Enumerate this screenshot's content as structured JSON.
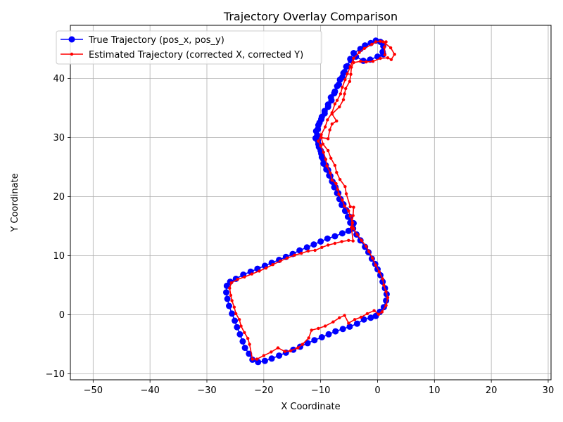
{
  "chart_data": {
    "type": "line",
    "title": "Trajectory Overlay Comparison",
    "xlabel": "X Coordinate",
    "ylabel": "Y Coordinate",
    "xlim": [
      -54,
      30.5
    ],
    "ylim": [
      -11,
      49
    ],
    "xticks": [
      -50,
      -40,
      -30,
      -20,
      -10,
      0,
      10,
      20,
      30
    ],
    "yticks": [
      -10,
      0,
      10,
      20,
      30,
      40
    ],
    "grid": true,
    "legend_position": "top-left",
    "colors": {
      "true": "#0000ff",
      "estimated": "#ff0000",
      "grid": "#b0b0b0"
    },
    "series": [
      {
        "name": "True Trajectory (pos_x, pos_y)",
        "color": "#0000ff",
        "marker": "circle-large",
        "points": [
          [
            0.9,
            44.5
          ],
          [
            1.0,
            45.5
          ],
          [
            0.5,
            46.2
          ],
          [
            -0.3,
            46.4
          ],
          [
            -1.2,
            46.0
          ],
          [
            -2.2,
            45.6
          ],
          [
            -3.0,
            45.0
          ],
          [
            -4.2,
            44.3
          ],
          [
            -4.8,
            43.3
          ],
          [
            -5.3,
            42.1
          ],
          [
            -5.8,
            41.1
          ],
          [
            -6.2,
            40.2
          ],
          [
            -6.8,
            39.0
          ],
          [
            -7.5,
            37.8
          ],
          [
            -8.2,
            36.8
          ],
          [
            -8.7,
            35.6
          ],
          [
            -9.3,
            34.5
          ],
          [
            -9.8,
            33.5
          ],
          [
            -10.2,
            32.5
          ],
          [
            -10.5,
            31.4
          ],
          [
            -10.6,
            30.4
          ],
          [
            -10.5,
            29.5
          ],
          [
            -10.3,
            28.4
          ],
          [
            -9.9,
            27.3
          ],
          [
            -9.5,
            26.3
          ],
          [
            -9.1,
            25.3
          ],
          [
            -8.7,
            24.5
          ],
          [
            -8.3,
            23.5
          ],
          [
            -7.9,
            22.5
          ],
          [
            -7.4,
            21.6
          ],
          [
            -6.9,
            20.6
          ],
          [
            -6.5,
            19.6
          ],
          [
            -6.0,
            18.7
          ],
          [
            -5.5,
            17.7
          ],
          [
            -5.2,
            16.6
          ],
          [
            -4.8,
            15.6
          ],
          [
            -4.3,
            14.6
          ],
          [
            -3.7,
            13.6
          ],
          [
            -3.0,
            12.6
          ],
          [
            -2.2,
            11.5
          ],
          [
            -1.6,
            10.6
          ],
          [
            -1.0,
            9.5
          ],
          [
            -0.4,
            8.6
          ],
          [
            0.0,
            7.7
          ],
          [
            0.5,
            6.7
          ],
          [
            0.9,
            5.6
          ],
          [
            1.3,
            4.5
          ],
          [
            1.6,
            3.5
          ],
          [
            1.5,
            2.4
          ],
          [
            1.1,
            1.3
          ],
          [
            0.4,
            0.5
          ],
          [
            -0.3,
            -0.2
          ],
          [
            -1.2,
            -0.5
          ],
          [
            -2.4,
            -0.8
          ],
          [
            -3.6,
            -1.5
          ],
          [
            -4.9,
            -2.0
          ],
          [
            -6.1,
            -2.4
          ],
          [
            -7.4,
            -2.8
          ],
          [
            -8.6,
            -3.3
          ],
          [
            -9.8,
            -3.8
          ],
          [
            -11.1,
            -4.3
          ],
          [
            -12.3,
            -4.8
          ],
          [
            -13.6,
            -5.4
          ],
          [
            -14.8,
            -5.9
          ],
          [
            -16.1,
            -6.4
          ],
          [
            -17.3,
            -6.9
          ],
          [
            -18.6,
            -7.4
          ],
          [
            -19.8,
            -7.8
          ],
          [
            -21.0,
            -8.0
          ],
          [
            -22.0,
            -7.6
          ],
          [
            -22.6,
            -6.6
          ],
          [
            -23.3,
            -5.6
          ],
          [
            -23.7,
            -4.5
          ],
          [
            -24.2,
            -3.3
          ],
          [
            -24.7,
            -2.1
          ],
          [
            -25.1,
            -1.0
          ],
          [
            -25.6,
            0.2
          ],
          [
            -26.1,
            1.5
          ],
          [
            -26.4,
            2.7
          ],
          [
            -26.6,
            3.8
          ],
          [
            -26.5,
            4.9
          ],
          [
            -25.9,
            5.6
          ],
          [
            -24.9,
            6.1
          ],
          [
            -23.6,
            6.8
          ],
          [
            -22.3,
            7.3
          ],
          [
            -21.1,
            7.8
          ],
          [
            -19.8,
            8.3
          ],
          [
            -18.6,
            8.8
          ],
          [
            -17.3,
            9.3
          ],
          [
            -16.1,
            9.8
          ],
          [
            -14.9,
            10.3
          ],
          [
            -13.7,
            10.9
          ],
          [
            -12.4,
            11.4
          ],
          [
            -11.2,
            11.9
          ],
          [
            -10.0,
            12.4
          ],
          [
            -8.8,
            12.9
          ],
          [
            -7.5,
            13.3
          ],
          [
            -6.2,
            13.8
          ],
          [
            -5.1,
            14.2
          ],
          [
            -4.2,
            15.5
          ],
          [
            -4.9,
            16.6
          ],
          [
            -5.7,
            17.6
          ],
          [
            -6.3,
            18.6
          ],
          [
            -6.7,
            19.6
          ],
          [
            -7.1,
            20.6
          ],
          [
            -7.6,
            21.6
          ],
          [
            -8.0,
            22.6
          ],
          [
            -8.5,
            23.6
          ],
          [
            -9.0,
            24.6
          ],
          [
            -9.5,
            25.6
          ],
          [
            -9.8,
            26.7
          ],
          [
            -10.0,
            27.8
          ],
          [
            -10.4,
            28.9
          ],
          [
            -10.9,
            29.9
          ],
          [
            -10.8,
            31.1
          ],
          [
            -10.4,
            32.1
          ],
          [
            -9.9,
            33.1
          ],
          [
            -9.3,
            34.1
          ],
          [
            -8.7,
            35.2
          ],
          [
            -8.1,
            36.3
          ],
          [
            -7.6,
            37.5
          ],
          [
            -7.1,
            38.7
          ],
          [
            -6.6,
            39.8
          ],
          [
            -6.0,
            40.9
          ],
          [
            -5.5,
            42.0
          ],
          [
            -4.7,
            43.1
          ],
          [
            -3.8,
            43.7
          ],
          [
            -2.5,
            43.0
          ],
          [
            -1.3,
            43.2
          ],
          [
            0.0,
            43.7
          ],
          [
            1.0,
            44.1
          ]
        ]
      },
      {
        "name": "Estimated Trajectory (corrected X, corrected Y)",
        "color": "#ff0000",
        "marker": "circle-small",
        "points": [
          [
            1.3,
            44.0
          ],
          [
            1.2,
            45.3
          ],
          [
            1.5,
            46.2
          ],
          [
            0.5,
            46.3
          ],
          [
            -0.3,
            46.2
          ],
          [
            -1.0,
            45.8
          ],
          [
            -2.3,
            45.1
          ],
          [
            -3.2,
            44.4
          ],
          [
            -4.2,
            43.4
          ],
          [
            -4.8,
            42.0
          ],
          [
            -5.3,
            40.8
          ],
          [
            -5.7,
            39.8
          ],
          [
            -6.2,
            38.5
          ],
          [
            -6.5,
            37.4
          ],
          [
            -7.1,
            36.3
          ],
          [
            -7.5,
            35.7
          ],
          [
            -8.0,
            34.2
          ],
          [
            -8.8,
            33.0
          ],
          [
            -9.2,
            31.8
          ],
          [
            -9.9,
            30.5
          ],
          [
            -10.4,
            29.4
          ],
          [
            -10.0,
            28.6
          ],
          [
            -9.5,
            27.5
          ],
          [
            -9.1,
            26.3
          ],
          [
            -8.9,
            25.2
          ],
          [
            -8.3,
            24.0
          ],
          [
            -8.0,
            22.8
          ],
          [
            -7.3,
            22.2
          ],
          [
            -7.0,
            21.2
          ],
          [
            -6.8,
            20.4
          ],
          [
            -6.2,
            19.4
          ],
          [
            -5.8,
            18.4
          ],
          [
            -5.1,
            17.6
          ],
          [
            -4.8,
            16.7
          ],
          [
            -4.4,
            15.6
          ],
          [
            -4.2,
            14.6
          ],
          [
            -3.6,
            13.6
          ],
          [
            -2.8,
            12.6
          ],
          [
            -2.0,
            11.6
          ],
          [
            -1.5,
            10.7
          ],
          [
            -0.9,
            9.6
          ],
          [
            -0.3,
            8.4
          ],
          [
            0.3,
            7.3
          ],
          [
            0.9,
            6.1
          ],
          [
            1.1,
            5.0
          ],
          [
            1.5,
            3.9
          ],
          [
            1.8,
            2.9
          ],
          [
            1.5,
            1.6
          ],
          [
            0.8,
            0.5
          ],
          [
            0.2,
            0.1
          ],
          [
            -0.6,
            0.7
          ],
          [
            -1.8,
            0.2
          ],
          [
            -2.9,
            -0.4
          ],
          [
            -4.0,
            -0.8
          ],
          [
            -5.1,
            -1.4
          ],
          [
            -5.8,
            -0.1
          ],
          [
            -6.7,
            -0.5
          ],
          [
            -7.8,
            -1.2
          ],
          [
            -9.2,
            -1.9
          ],
          [
            -10.4,
            -2.3
          ],
          [
            -11.6,
            -2.6
          ],
          [
            -12.1,
            -3.9
          ],
          [
            -13.2,
            -5.0
          ],
          [
            -14.0,
            -5.6
          ],
          [
            -15.3,
            -6.1
          ],
          [
            -16.3,
            -6.2
          ],
          [
            -17.5,
            -5.6
          ],
          [
            -18.7,
            -6.3
          ],
          [
            -20.0,
            -6.9
          ],
          [
            -21.2,
            -7.5
          ],
          [
            -22.0,
            -7.5
          ],
          [
            -22.5,
            -5.0
          ],
          [
            -22.8,
            -4.0
          ],
          [
            -23.4,
            -3.0
          ],
          [
            -24.0,
            -1.9
          ],
          [
            -24.3,
            -0.8
          ],
          [
            -24.9,
            0.2
          ],
          [
            -25.2,
            1.3
          ],
          [
            -25.6,
            2.4
          ],
          [
            -25.8,
            3.3
          ],
          [
            -26.0,
            4.5
          ],
          [
            -25.7,
            5.4
          ],
          [
            -24.6,
            6.0
          ],
          [
            -23.4,
            6.4
          ],
          [
            -22.1,
            6.9
          ],
          [
            -20.8,
            7.4
          ],
          [
            -19.6,
            7.9
          ],
          [
            -18.4,
            8.5
          ],
          [
            -17.1,
            9.1
          ],
          [
            -15.9,
            9.6
          ],
          [
            -14.6,
            10.1
          ],
          [
            -13.4,
            10.4
          ],
          [
            -12.2,
            10.8
          ],
          [
            -11.0,
            10.9
          ],
          [
            -9.8,
            11.4
          ],
          [
            -8.7,
            11.8
          ],
          [
            -7.5,
            12.1
          ],
          [
            -6.3,
            12.4
          ],
          [
            -5.1,
            12.6
          ],
          [
            -4.3,
            12.5
          ],
          [
            -4.6,
            14.8
          ],
          [
            -4.3,
            16.8
          ],
          [
            -4.2,
            18.2
          ],
          [
            -4.8,
            18.3
          ],
          [
            -5.5,
            20.5
          ],
          [
            -5.7,
            21.7
          ],
          [
            -6.6,
            22.9
          ],
          [
            -7.2,
            24.1
          ],
          [
            -7.5,
            25.3
          ],
          [
            -8.2,
            26.5
          ],
          [
            -8.7,
            27.8
          ],
          [
            -9.6,
            28.9
          ],
          [
            -9.9,
            30.0
          ],
          [
            -8.7,
            29.8
          ],
          [
            -8.4,
            31.3
          ],
          [
            -8.0,
            32.3
          ],
          [
            -7.2,
            32.8
          ],
          [
            -8.0,
            34.0
          ],
          [
            -6.7,
            35.2
          ],
          [
            -6.0,
            36.4
          ],
          [
            -5.8,
            37.4
          ],
          [
            -5.6,
            38.3
          ],
          [
            -4.9,
            39.5
          ],
          [
            -4.7,
            40.7
          ],
          [
            -4.6,
            41.9
          ],
          [
            -4.2,
            42.7
          ],
          [
            -3.0,
            42.9
          ],
          [
            -2.0,
            42.8
          ],
          [
            -0.8,
            42.9
          ],
          [
            0.5,
            43.4
          ],
          [
            1.8,
            43.5
          ],
          [
            2.4,
            43.2
          ],
          [
            3.0,
            44.1
          ],
          [
            2.3,
            45.2
          ],
          [
            1.0,
            46.2
          ]
        ]
      }
    ]
  }
}
